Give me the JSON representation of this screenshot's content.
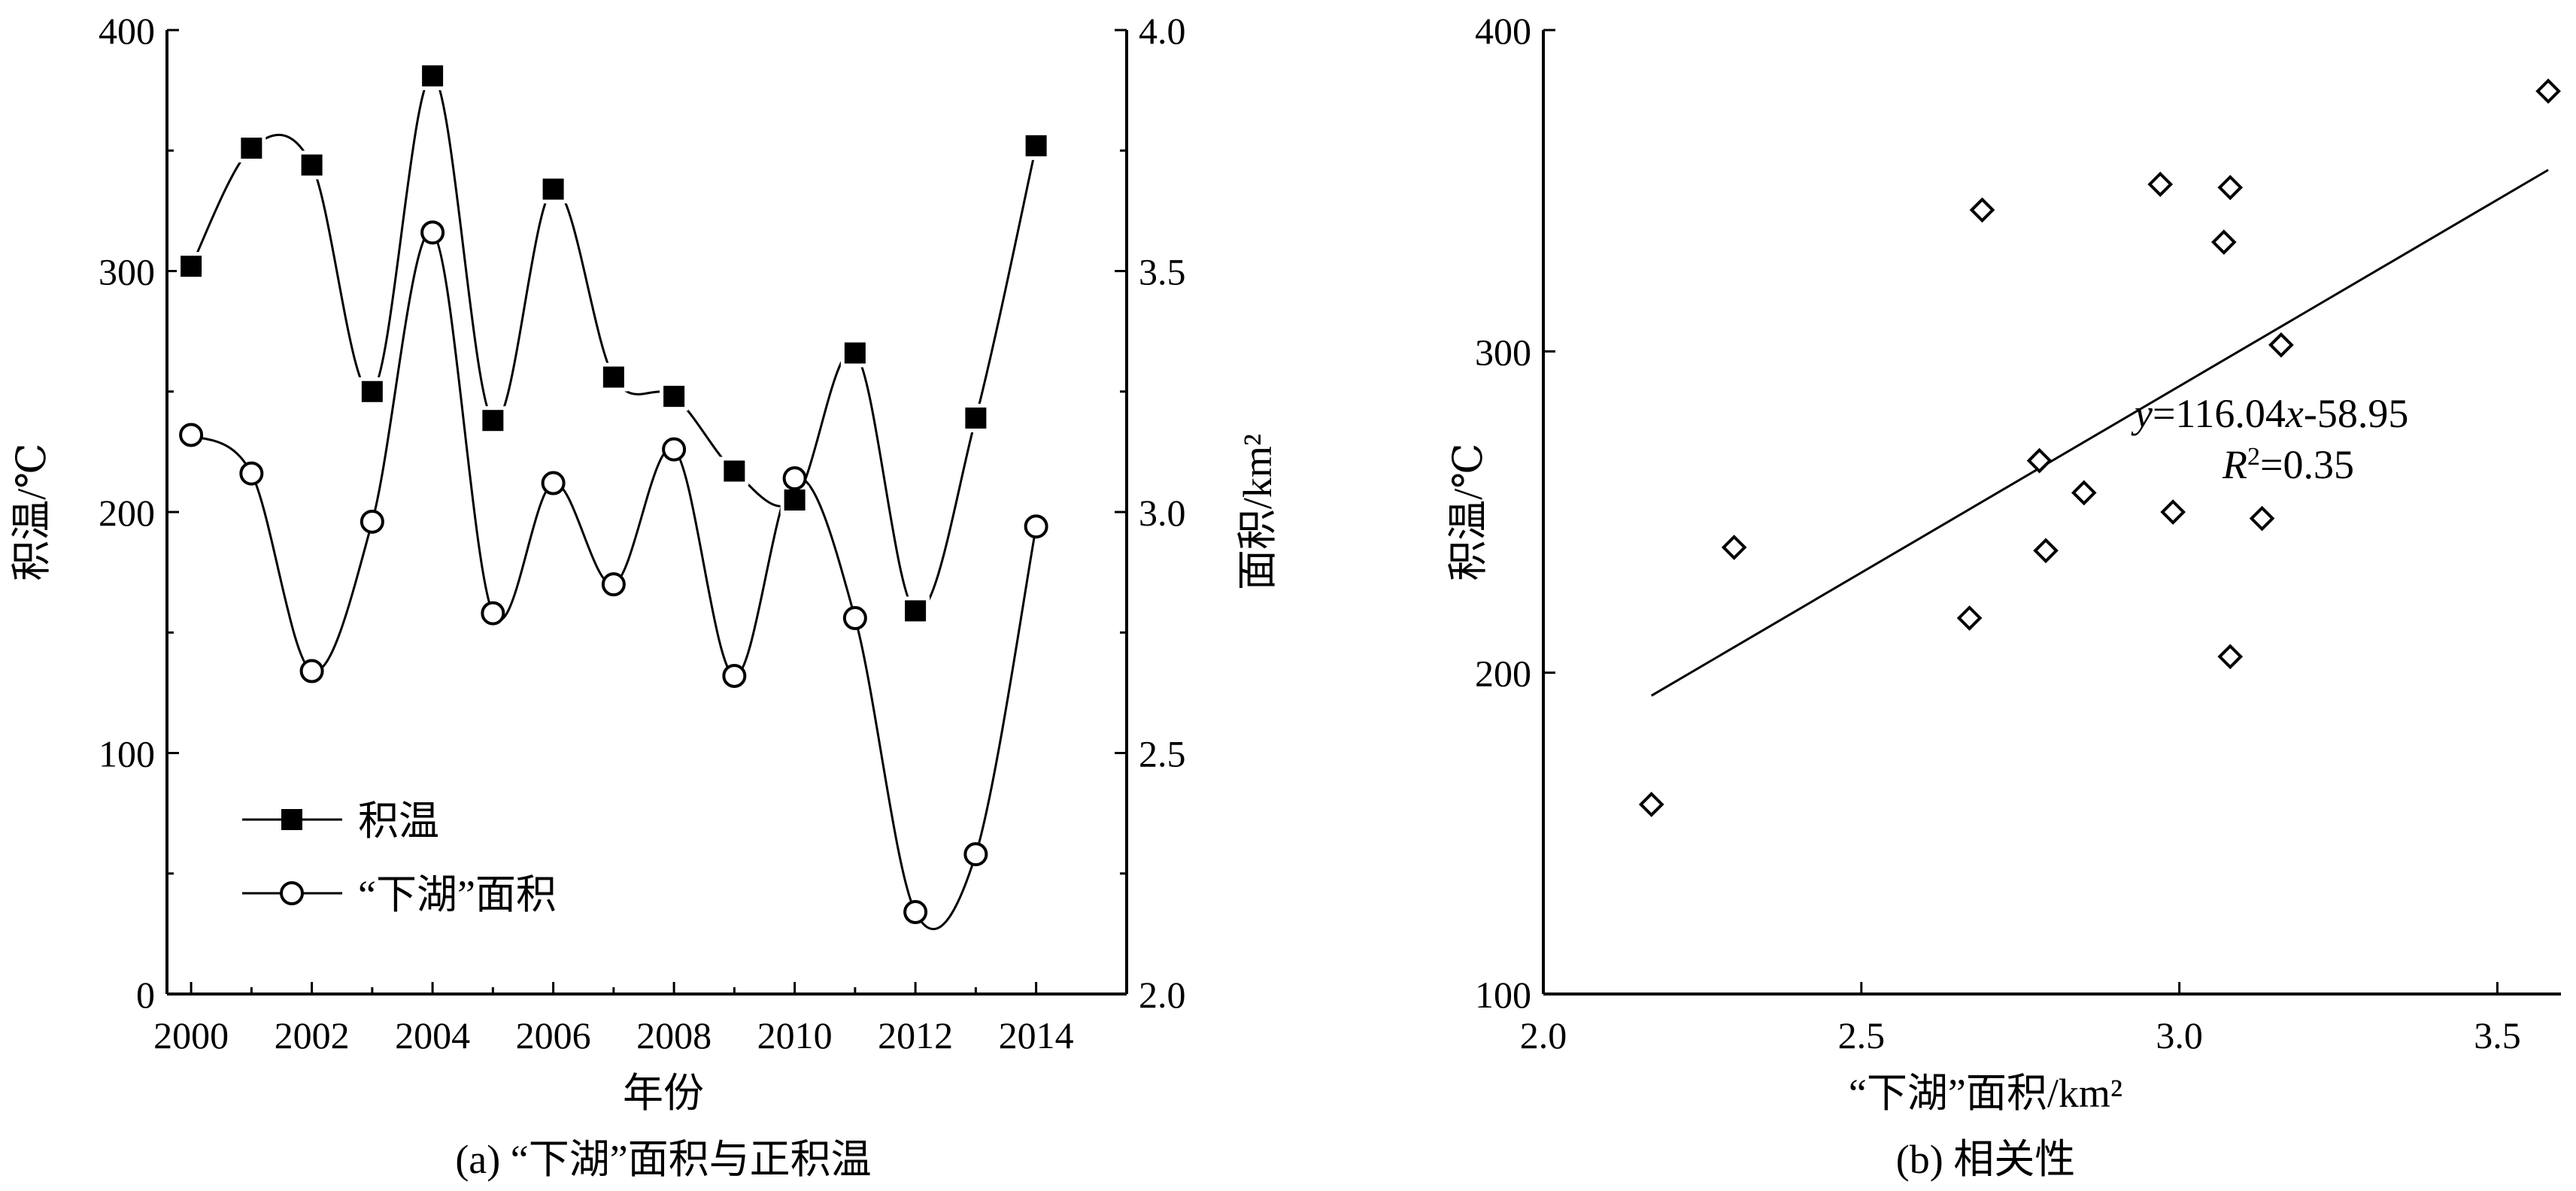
{
  "chart_data": [
    {
      "id": "a",
      "type": "line",
      "caption": "(a) “下湖”面积与正积温",
      "xlabel": "年份",
      "ylabel_left": "积温/℃",
      "ylabel_right": "面积/km²",
      "xlim": [
        1999.6,
        2015.5
      ],
      "ylim_left": [
        0,
        400
      ],
      "ylim_right": [
        2.0,
        4.0
      ],
      "x_ticks": [
        "2000",
        "2002",
        "2004",
        "2006",
        "2008",
        "2010",
        "2012",
        "2014"
      ],
      "y_ticks_left": [
        "0",
        "100",
        "200",
        "300",
        "400"
      ],
      "y_ticks_right": [
        "2.0",
        "2.5",
        "3.0",
        "3.5",
        "4.0"
      ],
      "x": [
        2000,
        2001,
        2002,
        2003,
        2004,
        2005,
        2006,
        2007,
        2008,
        2009,
        2010,
        2011,
        2012,
        2013,
        2014
      ],
      "series": [
        {
          "name": "积温",
          "axis": "left",
          "marker": "filled-square",
          "values": [
            302,
            351,
            344,
            250,
            381,
            238,
            334,
            256,
            248,
            217,
            205,
            266,
            159,
            239,
            352
          ]
        },
        {
          "name": "“下湖”面积",
          "axis": "right",
          "marker": "open-circle",
          "values": [
            3.16,
            3.08,
            2.67,
            2.98,
            3.58,
            2.79,
            3.06,
            2.85,
            3.13,
            2.66,
            3.07,
            2.78,
            2.17,
            2.29,
            2.97
          ]
        }
      ],
      "legend_position": "lower-left",
      "grid": false
    },
    {
      "id": "b",
      "type": "scatter",
      "caption": "(b) 相关性",
      "xlabel": "“下湖”面积/km²",
      "ylabel": "积温/℃",
      "xlim": [
        2.0,
        3.6
      ],
      "ylim": [
        100,
        400
      ],
      "x_ticks": [
        "2.0",
        "2.5",
        "3.0",
        "3.5"
      ],
      "y_ticks": [
        "100",
        "200",
        "300",
        "400"
      ],
      "points": [
        {
          "x": 3.16,
          "y": 302
        },
        {
          "x": 3.08,
          "y": 351
        },
        {
          "x": 2.69,
          "y": 344
        },
        {
          "x": 2.99,
          "y": 250
        },
        {
          "x": 3.58,
          "y": 381
        },
        {
          "x": 2.79,
          "y": 238
        },
        {
          "x": 3.07,
          "y": 334
        },
        {
          "x": 2.85,
          "y": 256
        },
        {
          "x": 3.13,
          "y": 248
        },
        {
          "x": 2.67,
          "y": 217
        },
        {
          "x": 3.08,
          "y": 205
        },
        {
          "x": 2.78,
          "y": 266
        },
        {
          "x": 2.17,
          "y": 159
        },
        {
          "x": 2.3,
          "y": 239
        },
        {
          "x": 2.97,
          "y": 352
        }
      ],
      "fit": {
        "slope": 116.04,
        "intercept": -58.95,
        "x_range": [
          2.17,
          3.58
        ]
      },
      "equation": {
        "y_sym": "y",
        "mid": "=116.04",
        "x_sym": "x",
        "tail": "-58.95"
      },
      "r2": {
        "r": "R",
        "sup": "2",
        "val": "=0.35"
      },
      "grid": false
    }
  ]
}
